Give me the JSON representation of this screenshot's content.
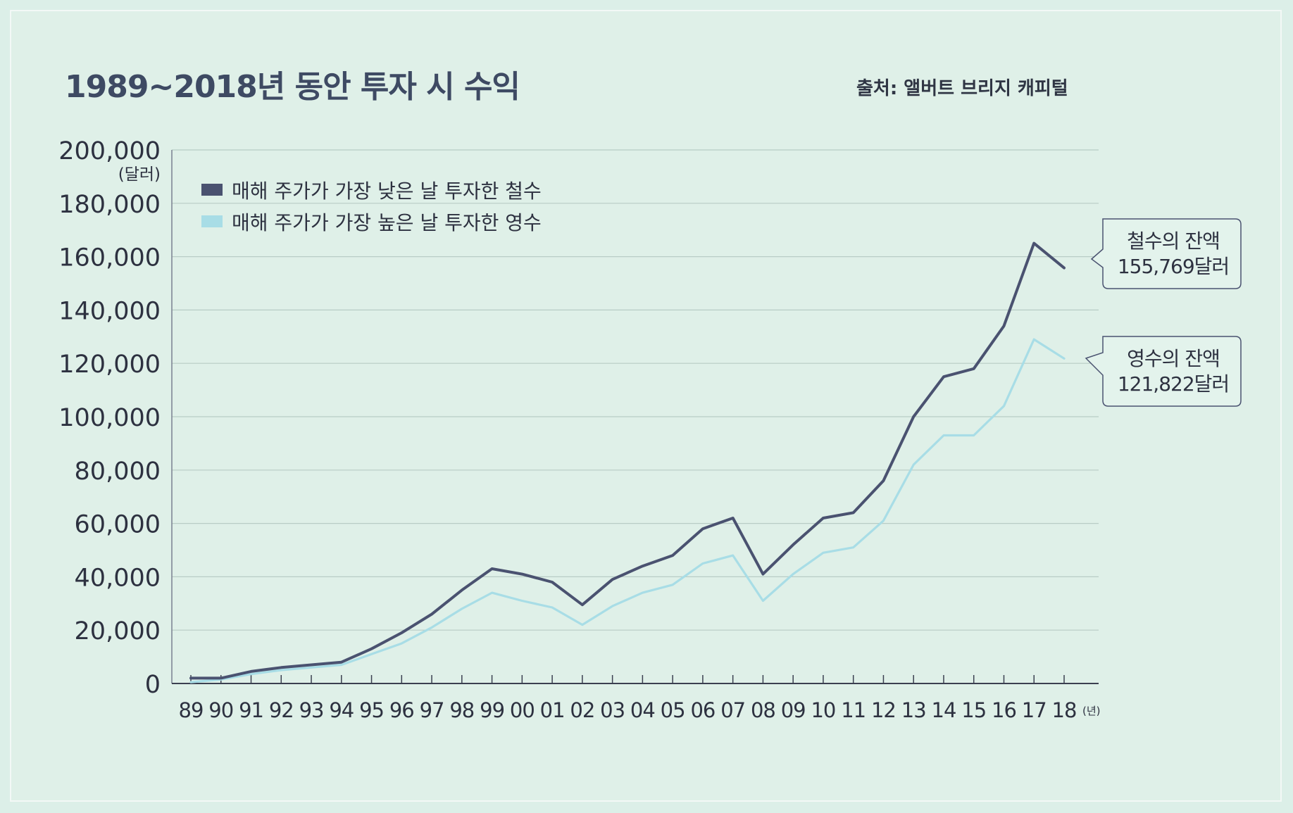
{
  "title": "1989~2018년 동안 투자 시 수익",
  "source": "출처: 앨버트 브리지 캐피털",
  "chart_data": {
    "type": "line",
    "title": "1989~2018년 동안 투자 시 수익",
    "ylabel": "(달러)",
    "xunit": "(년)",
    "ylim": [
      0,
      200000
    ],
    "yticks": [
      "0",
      "20,000",
      "40,000",
      "60,000",
      "80,000",
      "100,000",
      "120,000",
      "140,000",
      "160,000",
      "180,000",
      "200,000"
    ],
    "ytick_values": [
      0,
      20000,
      40000,
      60000,
      80000,
      100000,
      120000,
      140000,
      160000,
      180000,
      200000
    ],
    "x": [
      "89",
      "90",
      "91",
      "92",
      "93",
      "94",
      "95",
      "96",
      "97",
      "98",
      "99",
      "00",
      "01",
      "02",
      "03",
      "04",
      "05",
      "06",
      "07",
      "08",
      "09",
      "10",
      "11",
      "12",
      "13",
      "14",
      "15",
      "16",
      "17",
      "18"
    ],
    "legend_position": "top-left",
    "grid": true,
    "series": [
      {
        "name": "매해 주가가 가장 낮은 날 투자한 철수",
        "color": "#4a5270",
        "values": [
          2000,
          2000,
          4500,
          6000,
          7000,
          8000,
          13000,
          19000,
          26000,
          35000,
          43000,
          41000,
          38000,
          29500,
          39000,
          44000,
          48000,
          58000,
          62000,
          41000,
          52000,
          62000,
          64000,
          76000,
          100000,
          115000,
          118000,
          134000,
          165000,
          155769
        ]
      },
      {
        "name": "매해 주가가 가장 높은 날 투자한 영수",
        "color": "#a8dde6",
        "values": [
          500,
          1500,
          3500,
          5000,
          6000,
          7000,
          11000,
          15000,
          21000,
          28000,
          34000,
          31000,
          28500,
          22000,
          29000,
          34000,
          37000,
          45000,
          48000,
          31000,
          41000,
          49000,
          51000,
          61000,
          82000,
          93000,
          93000,
          104000,
          129000,
          121822
        ]
      }
    ],
    "annotations": [
      {
        "line1": "철수의 잔액",
        "line2": "155,769달러",
        "series": 0
      },
      {
        "line1": "영수의 잔액",
        "line2": "121,822달러",
        "series": 1
      }
    ]
  }
}
